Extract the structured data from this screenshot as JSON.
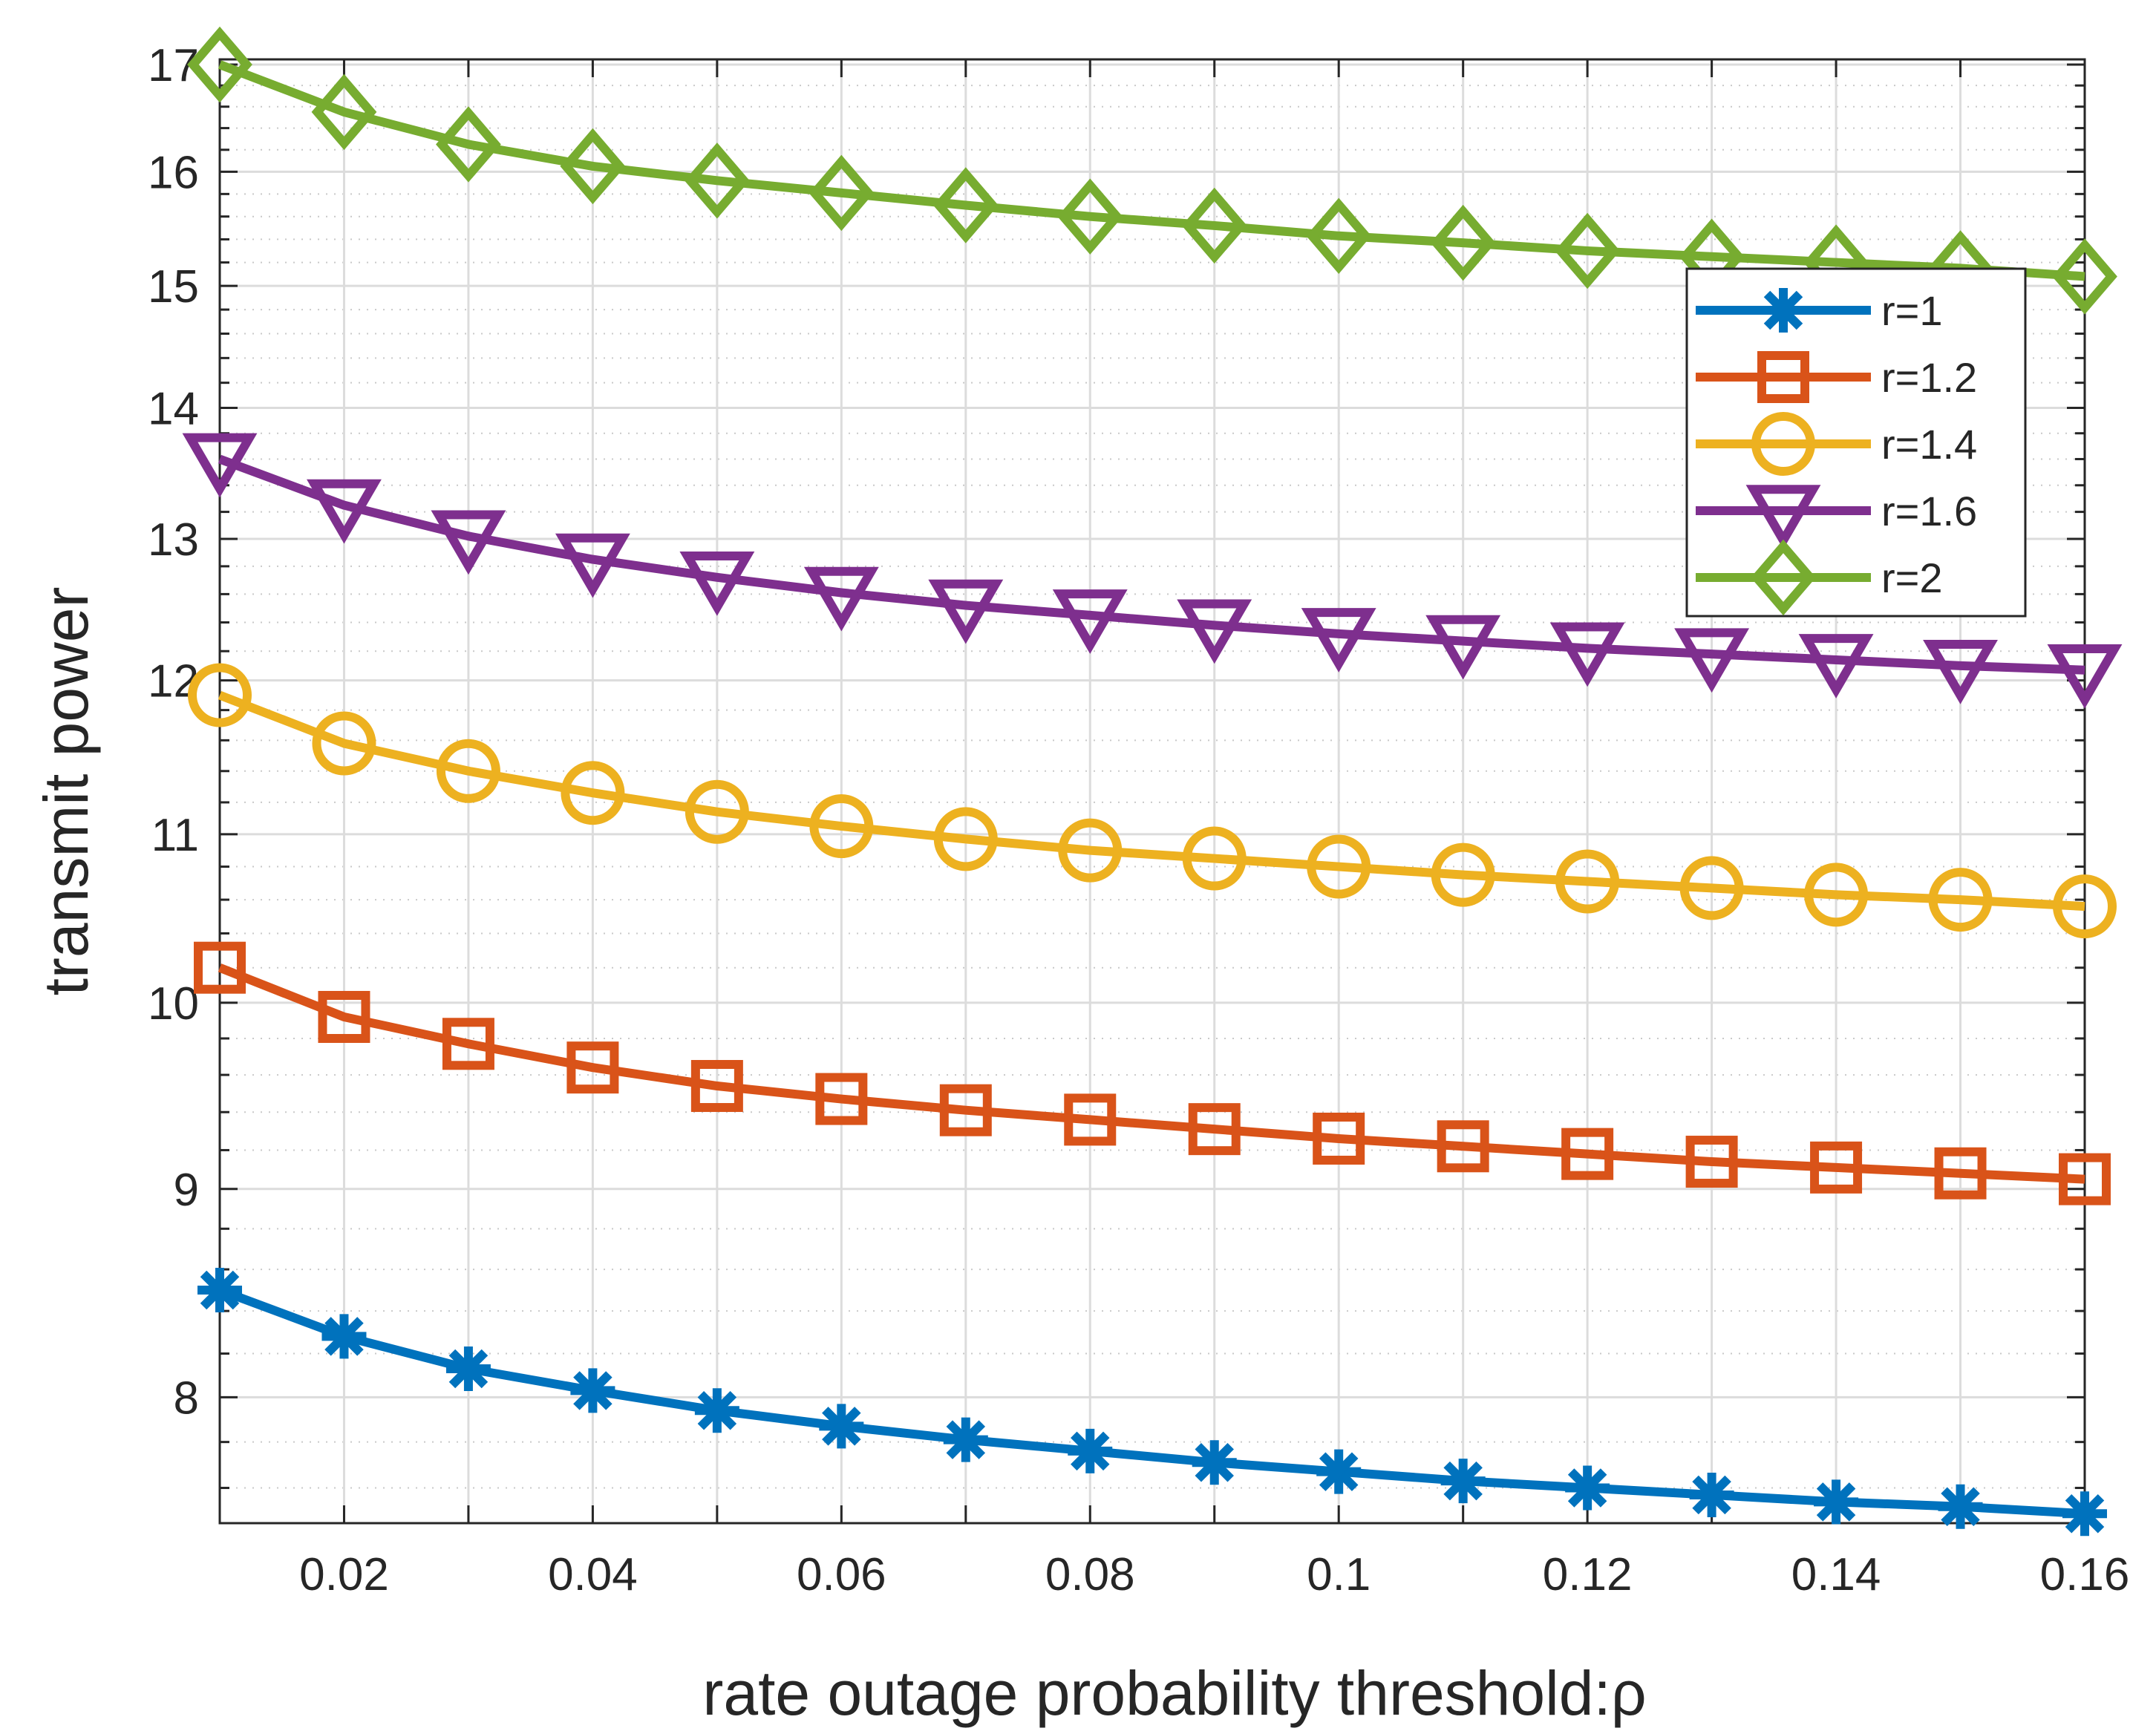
{
  "chart_data": {
    "type": "line",
    "xlabel": "rate outage probability threshold:ρ",
    "ylabel": "transmit power",
    "xlim": [
      0.01,
      0.16
    ],
    "ylim": [
      7.45,
      17.05
    ],
    "ylog": true,
    "grid": true,
    "minor_grid": true,
    "legend_position": "top-right",
    "x_ticks": [
      0.02,
      0.04,
      0.06,
      0.08,
      0.1,
      0.12,
      0.14,
      0.16
    ],
    "x_tick_labels": [
      "0.02",
      "0.04",
      "0.06",
      "0.08",
      "0.1",
      "0.12",
      "0.14",
      "0.16"
    ],
    "y_ticks": [
      8,
      9,
      10,
      11,
      12,
      13,
      14,
      15,
      16,
      17
    ],
    "y_tick_labels": [
      "8",
      "9",
      "10",
      "11",
      "12",
      "13",
      "14",
      "15",
      "16",
      "17"
    ],
    "x": [
      0.01,
      0.02,
      0.03,
      0.04,
      0.05,
      0.06,
      0.07,
      0.08,
      0.09,
      0.1,
      0.11,
      0.12,
      0.13,
      0.14,
      0.15,
      0.16
    ],
    "series": [
      {
        "name": "r=1",
        "color": "#0072BD",
        "marker": "asterisk",
        "values": [
          8.5,
          8.28,
          8.13,
          8.03,
          7.94,
          7.87,
          7.81,
          7.76,
          7.71,
          7.67,
          7.63,
          7.6,
          7.57,
          7.54,
          7.52,
          7.49
        ]
      },
      {
        "name": "r=1.2",
        "color": "#D95319",
        "marker": "square",
        "values": [
          10.2,
          9.92,
          9.77,
          9.64,
          9.54,
          9.47,
          9.41,
          9.36,
          9.31,
          9.26,
          9.22,
          9.18,
          9.14,
          9.11,
          9.08,
          9.05
        ]
      },
      {
        "name": "r=1.4",
        "color": "#EDB120",
        "marker": "circle",
        "values": [
          11.9,
          11.58,
          11.4,
          11.26,
          11.14,
          11.05,
          10.97,
          10.9,
          10.85,
          10.8,
          10.75,
          10.71,
          10.67,
          10.63,
          10.6,
          10.56
        ]
      },
      {
        "name": "r=1.6",
        "color": "#7E2F8E",
        "marker": "triangle-down",
        "values": [
          13.6,
          13.25,
          13.02,
          12.85,
          12.72,
          12.61,
          12.52,
          12.45,
          12.38,
          12.32,
          12.27,
          12.22,
          12.18,
          12.14,
          12.1,
          12.07
        ]
      },
      {
        "name": "r=2",
        "color": "#77AC30",
        "marker": "diamond",
        "values": [
          17.0,
          16.55,
          16.25,
          16.05,
          15.92,
          15.81,
          15.7,
          15.6,
          15.52,
          15.43,
          15.37,
          15.3,
          15.25,
          15.2,
          15.15,
          15.08
        ]
      }
    ]
  }
}
